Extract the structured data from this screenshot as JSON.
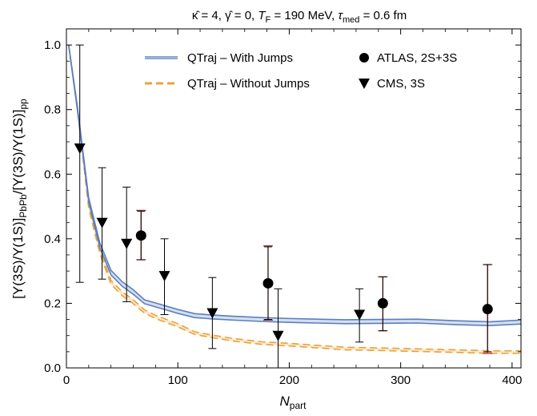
{
  "chart_data": {
    "type": "line",
    "title": "κ̂ = 4, γ̂ = 0, T_F = 190 MeV, τ_med = 0.6 fm",
    "title_parts": {
      "kappa": "κ̂ = 4, ",
      "gamma": "γ̂ = 0, ",
      "tf_sym": "T",
      "tf_sub": "F",
      "tf_val": " = 190 MeV, ",
      "tau_sym": "τ",
      "tau_sub": "med",
      "tau_val": " = 0.6 fm"
    },
    "xlabel": "N_part",
    "xlabel_parts": {
      "main": "N",
      "sub": "part"
    },
    "ylabel": "[Υ(3S)/Υ(1S)]_PbPb/[Υ(3S)/Υ(1S)]_pp",
    "ylabel_parts": {
      "a": "[Υ(3S)/Υ(1S)]",
      "a_sub": "PbPb",
      "b": "/[Υ(3S)/Υ(1S)]",
      "b_sub": "pp"
    },
    "xlim": [
      0,
      408
    ],
    "ylim": [
      0,
      1.05
    ],
    "x_ticks": [
      0,
      100,
      200,
      300,
      400
    ],
    "x_tick_labels": [
      "0",
      "100",
      "200",
      "300",
      "400"
    ],
    "y_ticks": [
      0.0,
      0.2,
      0.4,
      0.6,
      0.8,
      1.0
    ],
    "y_tick_labels": [
      "0.0",
      "0.2",
      "0.4",
      "0.6",
      "0.8",
      "1.0"
    ],
    "grid": false,
    "legend_position": "top-right",
    "series": [
      {
        "name": "QTraj – With Jumps",
        "kind": "band",
        "color": "#5b7fbf",
        "x": [
          2,
          10,
          20,
          30,
          40,
          50,
          60,
          70,
          80,
          90,
          100,
          115,
          130,
          150,
          175,
          200,
          225,
          250,
          280,
          315,
          350,
          380,
          408
        ],
        "y": [
          1.0,
          0.8,
          0.52,
          0.38,
          0.295,
          0.26,
          0.235,
          0.205,
          0.195,
          0.185,
          0.175,
          0.162,
          0.158,
          0.154,
          0.15,
          0.147,
          0.145,
          0.143,
          0.144,
          0.145,
          0.14,
          0.137,
          0.142
        ],
        "band_halfwidth": [
          0.0,
          0.005,
          0.006,
          0.007,
          0.007,
          0.007,
          0.007,
          0.006,
          0.006,
          0.006,
          0.006,
          0.006,
          0.006,
          0.006,
          0.006,
          0.006,
          0.006,
          0.006,
          0.006,
          0.006,
          0.006,
          0.006,
          0.006
        ]
      },
      {
        "name": "QTraj – Without Jumps",
        "kind": "band-dashed",
        "color": "#e8a33a",
        "x": [
          2,
          10,
          20,
          30,
          40,
          50,
          60,
          70,
          80,
          90,
          100,
          115,
          130,
          150,
          175,
          200,
          225,
          250,
          280,
          315,
          350,
          380,
          408
        ],
        "y": [
          1.0,
          0.8,
          0.5,
          0.36,
          0.265,
          0.23,
          0.205,
          0.175,
          0.158,
          0.145,
          0.132,
          0.108,
          0.098,
          0.087,
          0.077,
          0.072,
          0.066,
          0.06,
          0.058,
          0.055,
          0.052,
          0.049,
          0.049
        ],
        "band_halfwidth": [
          0.0,
          0.005,
          0.006,
          0.006,
          0.006,
          0.006,
          0.006,
          0.005,
          0.005,
          0.005,
          0.005,
          0.004,
          0.004,
          0.004,
          0.004,
          0.004,
          0.004,
          0.004,
          0.004,
          0.004,
          0.004,
          0.004,
          0.004
        ]
      },
      {
        "name": "ATLAS, 2S+3S",
        "kind": "points",
        "marker": "circle",
        "color": "#000000",
        "points": [
          {
            "x": 67,
            "y": 0.41,
            "err_inner": [
              0.335,
              0.485
            ],
            "err_outer": [
              0.335,
              0.488
            ]
          },
          {
            "x": 181,
            "y": 0.262,
            "err_inner": [
              0.15,
              0.375
            ],
            "err_outer": [
              0.148,
              0.378
            ]
          },
          {
            "x": 284,
            "y": 0.2,
            "err_inner": [
              0.115,
              0.282
            ],
            "err_outer": [
              0.115,
              0.282
            ]
          },
          {
            "x": 378,
            "y": 0.182,
            "err_inner": [
              0.05,
              0.32
            ],
            "err_outer": [
              0.045,
              0.32
            ]
          }
        ]
      },
      {
        "name": "CMS, 3S",
        "kind": "points",
        "marker": "triangle-down",
        "color": "#000000",
        "points": [
          {
            "x": 12,
            "y": 0.68,
            "err": [
              0.265,
              1.0
            ]
          },
          {
            "x": 32,
            "y": 0.45,
            "err": [
              0.275,
              0.62
            ]
          },
          {
            "x": 54,
            "y": 0.385,
            "err": [
              0.205,
              0.56
            ]
          },
          {
            "x": 88,
            "y": 0.285,
            "err": [
              0.165,
              0.4
            ]
          },
          {
            "x": 131,
            "y": 0.17,
            "err": [
              0.06,
              0.28
            ]
          },
          {
            "x": 190,
            "y": 0.1,
            "err": [
              0.0,
              0.245
            ]
          },
          {
            "x": 263,
            "y": 0.165,
            "err": [
              0.08,
              0.245
            ]
          }
        ]
      }
    ]
  }
}
